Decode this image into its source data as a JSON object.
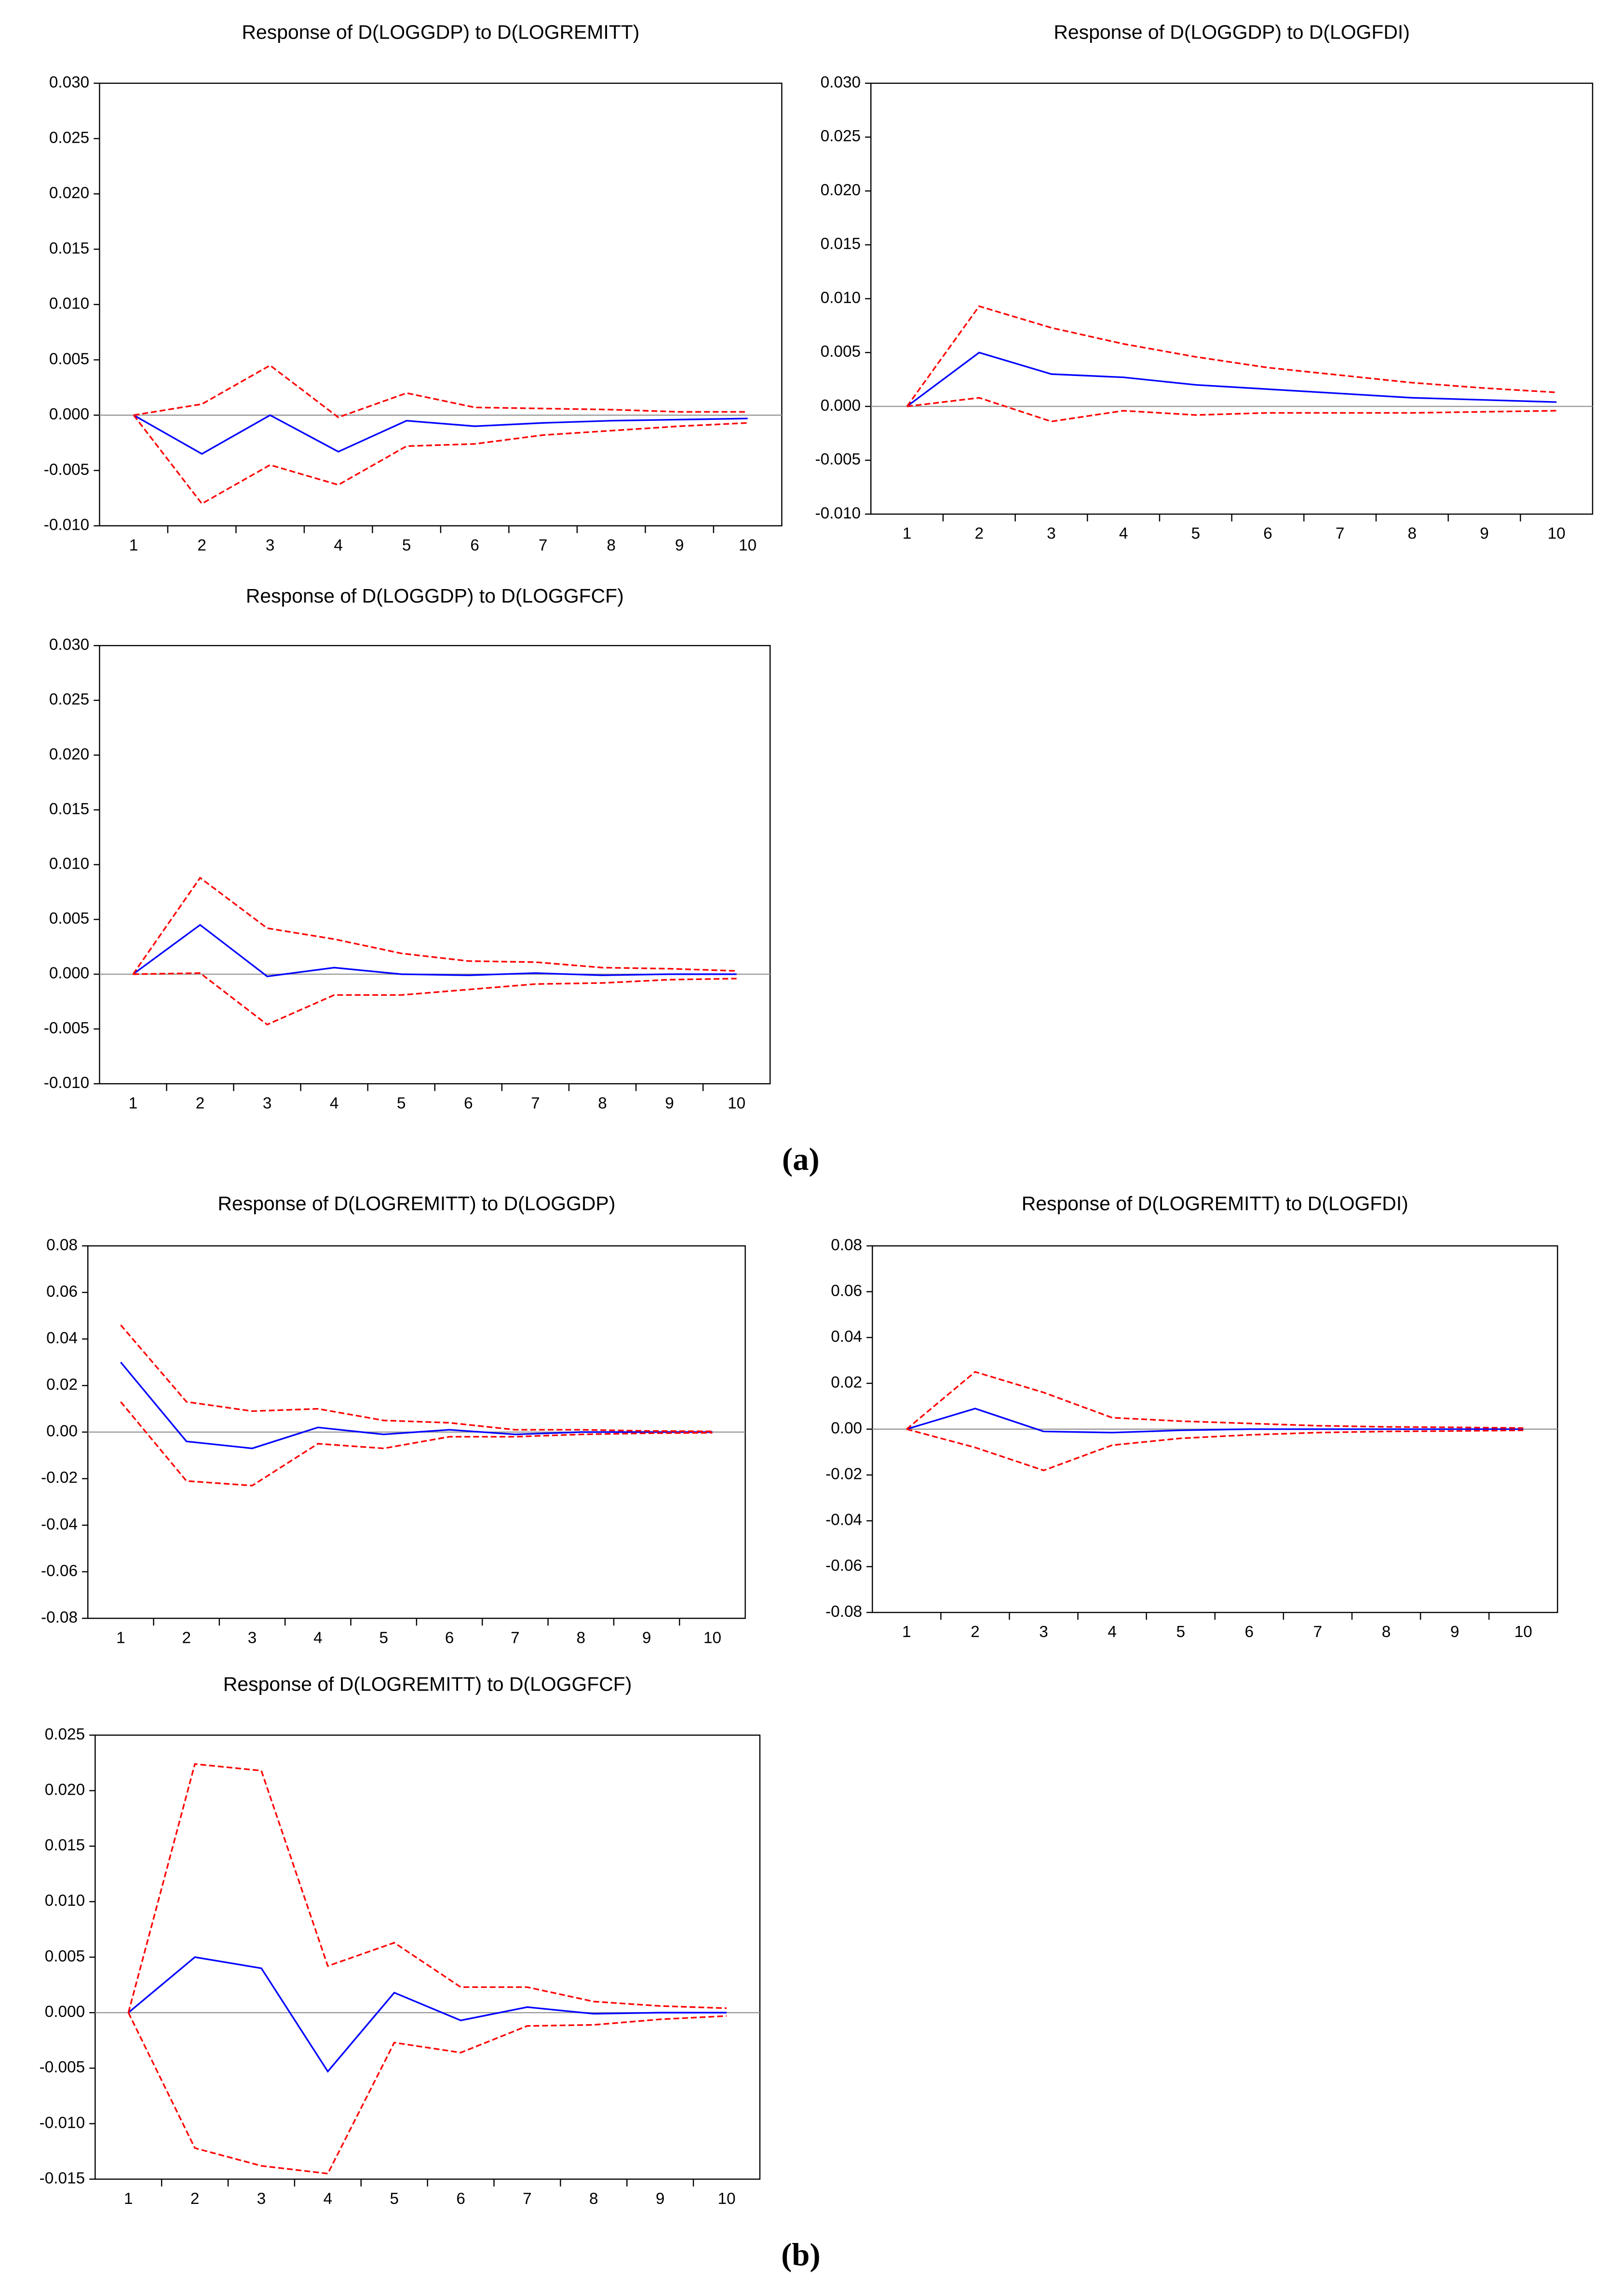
{
  "panel_labels": [
    "(a)",
    "(b)"
  ],
  "chart_data": [
    {
      "type": "line",
      "title": "Response of D(LOGGDP) to D(LOGREMITT)",
      "categories": [
        1,
        2,
        3,
        4,
        5,
        6,
        7,
        8,
        9,
        10
      ],
      "ylim": [
        -0.01,
        0.03
      ],
      "yticks": [
        {
          "value": -0.01,
          "label": "-0.010"
        },
        {
          "value": -0.005,
          "label": "-0.005"
        },
        {
          "value": 0,
          "label": "0.000"
        },
        {
          "value": 0.005,
          "label": "0.005"
        },
        {
          "value": 0.01,
          "label": "0.010"
        },
        {
          "value": 0.015,
          "label": "0.015"
        },
        {
          "value": 0.02,
          "label": "0.020"
        },
        {
          "value": 0.025,
          "label": "0.025"
        },
        {
          "value": 0.03,
          "label": "0.030"
        }
      ],
      "series": [
        {
          "color": "#0000ff",
          "dashed": false,
          "values": [
            0,
            -0.0035,
            0,
            -0.0033,
            -0.0005,
            -0.001,
            -0.0007,
            -0.0005,
            -0.0004,
            -0.0003
          ]
        },
        {
          "color": "#ff0000",
          "dashed": true,
          "values": [
            0,
            0.001,
            0.0045,
            -0.0002,
            0.002,
            0.0007,
            0.0006,
            0.0005,
            0.0003,
            0.0003
          ]
        },
        {
          "color": "#ff0000",
          "dashed": true,
          "values": [
            0,
            -0.008,
            -0.0045,
            -0.0063,
            -0.0028,
            -0.0026,
            -0.0018,
            -0.0014,
            -0.001,
            -0.0007
          ]
        }
      ]
    },
    {
      "type": "line",
      "title": "Response of D(LOGGDP) to D(LOGFDI)",
      "categories": [
        1,
        2,
        3,
        4,
        5,
        6,
        7,
        8,
        9,
        10
      ],
      "ylim": [
        -0.01,
        0.03
      ],
      "yticks": [
        {
          "value": -0.01,
          "label": "-0.010"
        },
        {
          "value": -0.005,
          "label": "-0.005"
        },
        {
          "value": 0,
          "label": "0.000"
        },
        {
          "value": 0.005,
          "label": "0.005"
        },
        {
          "value": 0.01,
          "label": "0.010"
        },
        {
          "value": 0.015,
          "label": "0.015"
        },
        {
          "value": 0.02,
          "label": "0.020"
        },
        {
          "value": 0.025,
          "label": "0.025"
        },
        {
          "value": 0.03,
          "label": "0.030"
        }
      ],
      "series": [
        {
          "color": "#0000ff",
          "dashed": false,
          "values": [
            0,
            0.005,
            0.003,
            0.0027,
            0.002,
            0.0016,
            0.0012,
            0.0008,
            0.0006,
            0.0004
          ]
        },
        {
          "color": "#ff0000",
          "dashed": true,
          "values": [
            0,
            0.0093,
            0.0073,
            0.0058,
            0.0046,
            0.0036,
            0.0029,
            0.0022,
            0.0017,
            0.0013
          ]
        },
        {
          "color": "#ff0000",
          "dashed": true,
          "values": [
            0,
            0.0008,
            -0.0014,
            -0.0004,
            -0.0008,
            -0.0006,
            -0.0006,
            -0.0006,
            -0.0005,
            -0.0004
          ]
        }
      ]
    },
    {
      "type": "line",
      "title": "Response of D(LOGGDP) to D(LOGGFCF)",
      "categories": [
        1,
        2,
        3,
        4,
        5,
        6,
        7,
        8,
        9,
        10
      ],
      "ylim": [
        -0.01,
        0.03
      ],
      "yticks": [
        {
          "value": -0.01,
          "label": "-0.010"
        },
        {
          "value": -0.005,
          "label": "-0.005"
        },
        {
          "value": 0,
          "label": "0.000"
        },
        {
          "value": 0.005,
          "label": "0.005"
        },
        {
          "value": 0.01,
          "label": "0.010"
        },
        {
          "value": 0.015,
          "label": "0.015"
        },
        {
          "value": 0.02,
          "label": "0.020"
        },
        {
          "value": 0.025,
          "label": "0.025"
        },
        {
          "value": 0.03,
          "label": "0.030"
        }
      ],
      "series": [
        {
          "color": "#0000ff",
          "dashed": false,
          "values": [
            0,
            0.0045,
            -0.0002,
            0.0006,
            0,
            -0.0001,
            0.0001,
            -0.0001,
            0,
            0
          ]
        },
        {
          "color": "#ff0000",
          "dashed": true,
          "values": [
            0,
            0.0088,
            0.0042,
            0.0032,
            0.0019,
            0.0012,
            0.0011,
            0.0006,
            0.0005,
            0.0003
          ]
        },
        {
          "color": "#ff0000",
          "dashed": true,
          "values": [
            0,
            0.0001,
            -0.0046,
            -0.0019,
            -0.0019,
            -0.0014,
            -0.0009,
            -0.0008,
            -0.0005,
            -0.0004
          ]
        }
      ]
    },
    {
      "type": "line",
      "title": "Response of D(LOGREMITT) to D(LOGGDP)",
      "categories": [
        1,
        2,
        3,
        4,
        5,
        6,
        7,
        8,
        9,
        10
      ],
      "ylim": [
        -0.08,
        0.08
      ],
      "yticks": [
        {
          "value": -0.08,
          "label": "-0.08"
        },
        {
          "value": -0.06,
          "label": "-0.06"
        },
        {
          "value": -0.04,
          "label": "-0.04"
        },
        {
          "value": -0.02,
          "label": "-0.02"
        },
        {
          "value": 0,
          "label": "0.00"
        },
        {
          "value": 0.02,
          "label": "0.02"
        },
        {
          "value": 0.04,
          "label": "0.04"
        },
        {
          "value": 0.06,
          "label": "0.06"
        },
        {
          "value": 0.08,
          "label": "0.08"
        }
      ],
      "series": [
        {
          "color": "#0000ff",
          "dashed": false,
          "values": [
            0.03,
            -0.004,
            -0.007,
            0.002,
            -0.001,
            0.001,
            -0.001,
            0,
            0,
            0
          ]
        },
        {
          "color": "#ff0000",
          "dashed": true,
          "values": [
            0.046,
            0.013,
            0.009,
            0.01,
            0.005,
            0.004,
            0.001,
            0.001,
            0.0005,
            0.0003
          ]
        },
        {
          "color": "#ff0000",
          "dashed": true,
          "values": [
            0.013,
            -0.021,
            -0.023,
            -0.005,
            -0.007,
            -0.002,
            -0.002,
            -0.001,
            -0.0005,
            -0.0003
          ]
        }
      ]
    },
    {
      "type": "line",
      "title": "Response of D(LOGREMITT) to D(LOGFDI)",
      "categories": [
        1,
        2,
        3,
        4,
        5,
        6,
        7,
        8,
        9,
        10
      ],
      "ylim": [
        -0.08,
        0.08
      ],
      "yticks": [
        {
          "value": -0.08,
          "label": "-0.08"
        },
        {
          "value": -0.06,
          "label": "-0.06"
        },
        {
          "value": -0.04,
          "label": "-0.04"
        },
        {
          "value": -0.02,
          "label": "-0.02"
        },
        {
          "value": 0,
          "label": "0.00"
        },
        {
          "value": 0.02,
          "label": "0.02"
        },
        {
          "value": 0.04,
          "label": "0.04"
        },
        {
          "value": 0.06,
          "label": "0.06"
        },
        {
          "value": 0.08,
          "label": "0.08"
        }
      ],
      "series": [
        {
          "color": "#0000ff",
          "dashed": false,
          "values": [
            0,
            0.009,
            -0.001,
            -0.0015,
            -0.0005,
            0,
            0,
            0,
            0,
            0
          ]
        },
        {
          "color": "#ff0000",
          "dashed": true,
          "values": [
            0,
            0.025,
            0.016,
            0.005,
            0.0035,
            0.0025,
            0.0015,
            0.001,
            0.0008,
            0.0005
          ]
        },
        {
          "color": "#ff0000",
          "dashed": true,
          "values": [
            0,
            -0.008,
            -0.018,
            -0.007,
            -0.004,
            -0.0025,
            -0.0015,
            -0.001,
            -0.0008,
            -0.0005
          ]
        }
      ]
    },
    {
      "type": "line",
      "title": "Response of D(LOGREMITT) to D(LOGGFCF)",
      "categories": [
        1,
        2,
        3,
        4,
        5,
        6,
        7,
        8,
        9,
        10
      ],
      "ylim": [
        -0.015,
        0.025
      ],
      "yticks": [
        {
          "value": -0.015,
          "label": "-0.015"
        },
        {
          "value": -0.01,
          "label": "-0.010"
        },
        {
          "value": -0.005,
          "label": "-0.005"
        },
        {
          "value": 0,
          "label": "0.000"
        },
        {
          "value": 0.005,
          "label": "0.005"
        },
        {
          "value": 0.01,
          "label": "0.010"
        },
        {
          "value": 0.015,
          "label": "0.015"
        },
        {
          "value": 0.02,
          "label": "0.020"
        },
        {
          "value": 0.025,
          "label": "0.025"
        }
      ],
      "series": [
        {
          "color": "#0000ff",
          "dashed": false,
          "values": [
            0,
            0.005,
            0.004,
            -0.0053,
            0.0018,
            -0.0007,
            0.0005,
            -0.0001,
            0,
            0
          ]
        },
        {
          "color": "#ff0000",
          "dashed": true,
          "values": [
            0,
            0.0224,
            0.0218,
            0.0042,
            0.0063,
            0.0023,
            0.0023,
            0.001,
            0.0006,
            0.0004
          ]
        },
        {
          "color": "#ff0000",
          "dashed": true,
          "values": [
            0,
            -0.0122,
            -0.0138,
            -0.0145,
            -0.0027,
            -0.0036,
            -0.0012,
            -0.0011,
            -0.0006,
            -0.0003
          ]
        }
      ]
    }
  ]
}
